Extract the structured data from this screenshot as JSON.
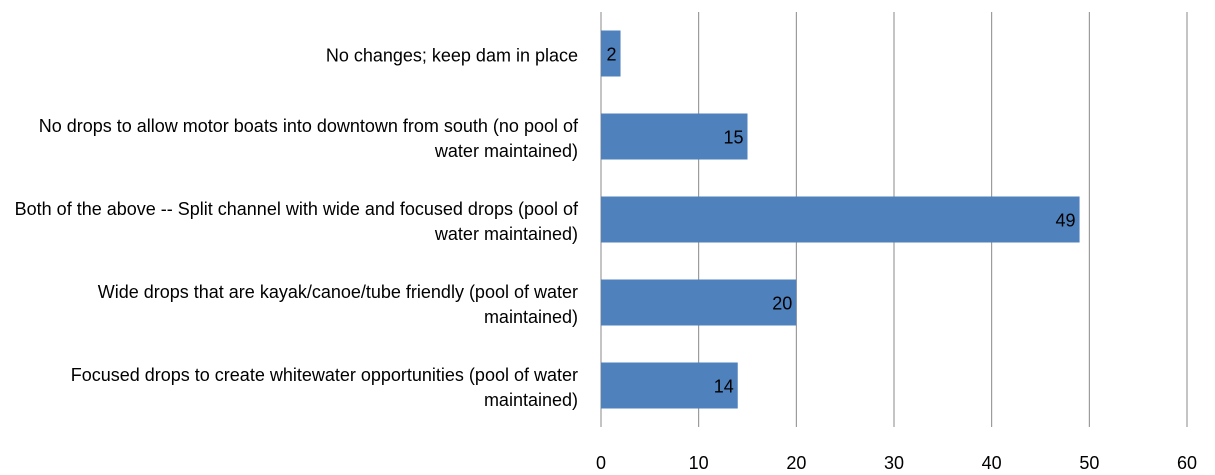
{
  "chart_data": {
    "type": "barh",
    "categories": [
      "No changes; keep dam in place",
      "No drops to allow motor boats into downtown from south (no pool of water maintained)",
      "Both of the above -- Split channel with wide and focused drops (pool of water maintained)",
      "Wide drops that are kayak/canoe/tube friendly (pool of water maintained)",
      "Focused drops to create whitewater opportunities (pool of water maintained)"
    ],
    "values": [
      2,
      15,
      49,
      20,
      14
    ],
    "color": "#4f81bd",
    "xlim": [
      0,
      60
    ],
    "xticks": [
      0,
      10,
      20,
      30,
      40,
      50,
      60
    ],
    "grid": true
  }
}
